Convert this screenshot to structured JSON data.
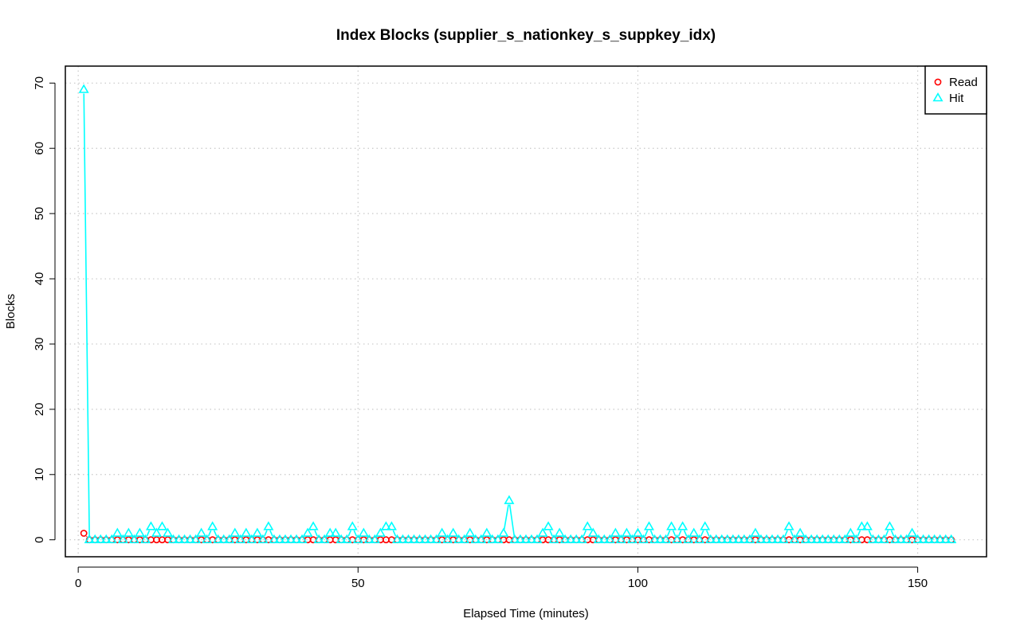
{
  "chart_data": {
    "type": "line",
    "title": "Index Blocks (supplier_s_nationkey_s_suppkey_idx)",
    "xlabel": "Elapsed Time (minutes)",
    "ylabel": "Blocks",
    "xlim": [
      -2.3,
      162.3
    ],
    "ylim": [
      -2.6,
      72.6
    ],
    "x_ticks": [
      0,
      50,
      100,
      150
    ],
    "y_ticks": [
      0,
      10,
      20,
      30,
      40,
      50,
      60,
      70
    ],
    "grid": true,
    "legend_position": "top-right",
    "series": [
      {
        "name": "Read",
        "color": "#ff0000",
        "marker": "circle",
        "x": [
          1,
          2,
          3,
          4,
          5,
          6,
          7,
          8,
          9,
          10,
          11,
          12,
          13,
          14,
          15,
          16,
          17,
          18,
          19,
          20,
          21,
          22,
          23,
          24,
          25,
          26,
          27,
          28,
          29,
          30,
          31,
          32,
          33,
          34,
          35,
          36,
          37,
          38,
          39,
          40,
          41,
          42,
          43,
          44,
          45,
          46,
          47,
          48,
          49,
          50,
          51,
          52,
          53,
          54,
          55,
          56,
          57,
          58,
          59,
          60,
          61,
          62,
          63,
          64,
          65,
          66,
          67,
          68,
          69,
          70,
          71,
          72,
          73,
          74,
          75,
          76,
          77,
          78,
          79,
          80,
          81,
          82,
          83,
          84,
          85,
          86,
          87,
          88,
          89,
          90,
          91,
          92,
          93,
          94,
          95,
          96,
          97,
          98,
          99,
          100,
          101,
          102,
          103,
          104,
          105,
          106,
          107,
          108,
          109,
          110,
          111,
          112,
          113,
          114,
          115,
          116,
          117,
          118,
          119,
          120,
          121,
          122,
          123,
          124,
          125,
          126,
          127,
          128,
          129,
          130,
          131,
          132,
          133,
          134,
          135,
          136,
          137,
          138,
          139,
          140,
          141,
          142,
          143,
          144,
          145,
          146,
          147,
          148,
          149,
          150,
          151,
          152,
          153,
          154,
          155,
          156
        ],
        "values": [
          1,
          0,
          0,
          0,
          0,
          0,
          0,
          0,
          0,
          0,
          0,
          0,
          0,
          0,
          0,
          0,
          0,
          0,
          0,
          0,
          0,
          0,
          0,
          0,
          0,
          0,
          0,
          0,
          0,
          0,
          0,
          0,
          0,
          0,
          0,
          0,
          0,
          0,
          0,
          0,
          0,
          0,
          0,
          0,
          0,
          0,
          0,
          0,
          0,
          0,
          0,
          0,
          0,
          0,
          0,
          0,
          0,
          0,
          0,
          0,
          0,
          0,
          0,
          0,
          0,
          0,
          0,
          0,
          0,
          0,
          0,
          0,
          0,
          0,
          0,
          0,
          0,
          0,
          0,
          0,
          0,
          0,
          0,
          0,
          0,
          0,
          0,
          0,
          0,
          0,
          0,
          0,
          0,
          0,
          0,
          0,
          0,
          0,
          0,
          0,
          0,
          0,
          0,
          0,
          0,
          0,
          0,
          0,
          0,
          0,
          0,
          0,
          0,
          0,
          0,
          0,
          0,
          0,
          0,
          0,
          0,
          0,
          0,
          0,
          0,
          0,
          0,
          0,
          0,
          0,
          0,
          0,
          0,
          0,
          0,
          0,
          0,
          0,
          0,
          0,
          0,
          0,
          0,
          0,
          0,
          0,
          0,
          0,
          0,
          0,
          0,
          0,
          0,
          0,
          0,
          0
        ]
      },
      {
        "name": "Hit",
        "color": "#00ffff",
        "marker": "triangle",
        "x": [
          1,
          2,
          3,
          4,
          5,
          6,
          7,
          8,
          9,
          10,
          11,
          12,
          13,
          14,
          15,
          16,
          17,
          18,
          19,
          20,
          21,
          22,
          23,
          24,
          25,
          26,
          27,
          28,
          29,
          30,
          31,
          32,
          33,
          34,
          35,
          36,
          37,
          38,
          39,
          40,
          41,
          42,
          43,
          44,
          45,
          46,
          47,
          48,
          49,
          50,
          51,
          52,
          53,
          54,
          55,
          56,
          57,
          58,
          59,
          60,
          61,
          62,
          63,
          64,
          65,
          66,
          67,
          68,
          69,
          70,
          71,
          72,
          73,
          74,
          75,
          76,
          77,
          78,
          79,
          80,
          81,
          82,
          83,
          84,
          85,
          86,
          87,
          88,
          89,
          90,
          91,
          92,
          93,
          94,
          95,
          96,
          97,
          98,
          99,
          100,
          101,
          102,
          103,
          104,
          105,
          106,
          107,
          108,
          109,
          110,
          111,
          112,
          113,
          114,
          115,
          116,
          117,
          118,
          119,
          120,
          121,
          122,
          123,
          124,
          125,
          126,
          127,
          128,
          129,
          130,
          131,
          132,
          133,
          134,
          135,
          136,
          137,
          138,
          139,
          140,
          141,
          142,
          143,
          144,
          145,
          146,
          147,
          148,
          149,
          150,
          151,
          152,
          153,
          154,
          155,
          156
        ],
        "values": [
          69,
          0,
          0,
          0,
          0,
          0,
          1,
          0,
          1,
          0,
          1,
          0,
          2,
          1,
          2,
          1,
          0,
          0,
          0,
          0,
          0,
          1,
          0,
          2,
          0,
          0,
          0,
          1,
          0,
          1,
          0,
          1,
          0,
          2,
          0,
          0,
          0,
          0,
          0,
          0,
          1,
          2,
          0,
          0,
          1,
          1,
          0,
          0,
          2,
          0,
          1,
          0,
          0,
          1,
          2,
          2,
          0,
          0,
          0,
          0,
          0,
          0,
          0,
          0,
          1,
          0,
          1,
          0,
          0,
          1,
          0,
          0,
          1,
          0,
          0,
          1,
          6,
          0,
          0,
          0,
          0,
          0,
          1,
          2,
          0,
          1,
          0,
          0,
          0,
          0,
          2,
          1,
          0,
          0,
          0,
          1,
          0,
          1,
          0,
          1,
          0,
          2,
          0,
          0,
          0,
          2,
          0,
          2,
          0,
          1,
          0,
          2,
          0,
          0,
          0,
          0,
          0,
          0,
          0,
          0,
          1,
          0,
          0,
          0,
          0,
          0,
          2,
          0,
          1,
          0,
          0,
          0,
          0,
          0,
          0,
          0,
          0,
          1,
          0,
          2,
          2,
          0,
          0,
          0,
          2,
          0,
          0,
          0,
          1,
          0,
          0,
          0,
          0,
          0,
          0,
          0
        ]
      }
    ]
  }
}
